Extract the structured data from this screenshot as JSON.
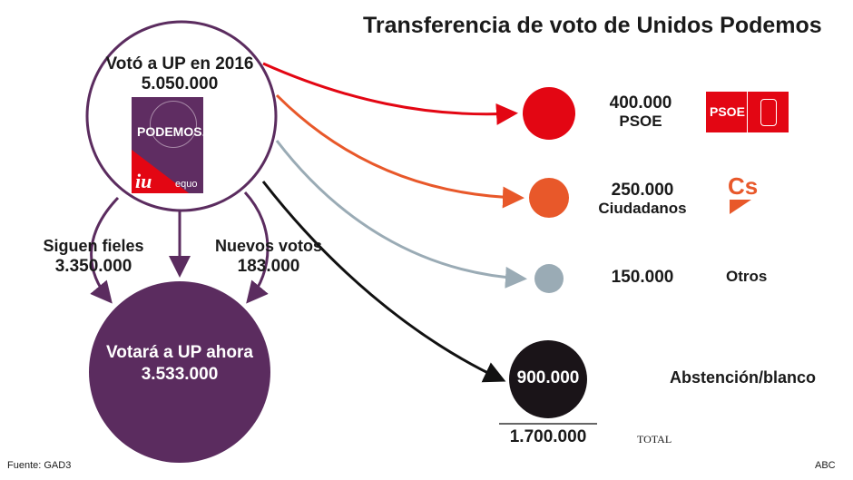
{
  "title": "Transferencia de voto de Unidos Podemos",
  "origin": {
    "label": "Votó a UP en 2016",
    "value": "5.050.000",
    "logo_text": "PODEMOS.",
    "logo_iu": "iu",
    "logo_equo": "equo"
  },
  "loyal": {
    "label": "Siguen fieles",
    "value": "3.350.000"
  },
  "new_votes": {
    "label": "Nuevos votos",
    "value": "183.000"
  },
  "now": {
    "label": "Votará a UP ahora",
    "value": "3.533.000"
  },
  "flows": [
    {
      "value": "400.000",
      "label": "PSOE",
      "color": "#e30613"
    },
    {
      "value": "250.000",
      "label": "Ciudadanos",
      "color": "#e8582a"
    },
    {
      "value": "150.000",
      "label": "Otros",
      "color": "#9aabb5"
    },
    {
      "value": "900.000",
      "label": "Abstención/blanco",
      "color": "#1a1418"
    }
  ],
  "psoe_logo": "PSOE",
  "cs_logo": "Cs",
  "total": {
    "value": "1.700.000",
    "label": "TOTAL"
  },
  "source": "Fuente: GAD3",
  "credit": "ABC"
}
